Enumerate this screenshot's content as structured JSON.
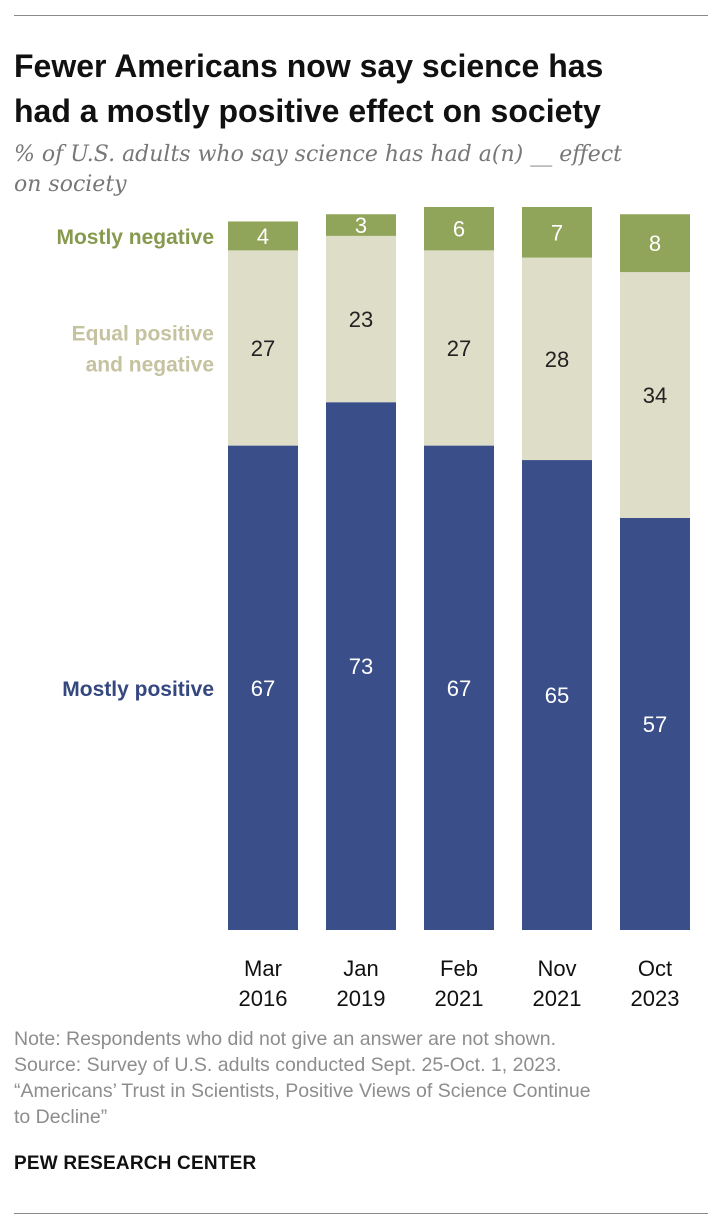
{
  "chart_data": {
    "type": "bar",
    "stacked": true,
    "title": "Fewer Americans now say science has had a mostly positive effect on society",
    "title_lines": [
      "Fewer Americans now say science has",
      "had a mostly positive effect on society"
    ],
    "subtitle": "% of U.S. adults who say science has had a(n) __ effect on society",
    "subtitle_lines": [
      "% of U.S. adults who say science has had a(n) __ effect",
      "on society"
    ],
    "categories": [
      {
        "label": [
          "Mar",
          "2016"
        ]
      },
      {
        "label": [
          "Jan",
          "2019"
        ]
      },
      {
        "label": [
          "Feb",
          "2021"
        ]
      },
      {
        "label": [
          "Nov",
          "2021"
        ]
      },
      {
        "label": [
          "Oct",
          "2023"
        ]
      }
    ],
    "series": [
      {
        "name": "Mostly positive",
        "label_lines": [
          "Mostly positive"
        ],
        "color": "#3a4f8a",
        "value_color": "#ffffff",
        "values": [
          67,
          73,
          67,
          65,
          57
        ]
      },
      {
        "name": "Equal positive and negative",
        "label_lines": [
          "Equal positive",
          "and negative"
        ],
        "color": "#deddc7",
        "value_color": "#222222",
        "values": [
          27,
          23,
          27,
          28,
          34
        ]
      },
      {
        "name": "Mostly negative",
        "label_lines": [
          "Mostly negative"
        ],
        "color": "#91a55a",
        "value_color": "#ffffff",
        "values": [
          4,
          3,
          6,
          7,
          8
        ]
      }
    ],
    "label_colors": [
      "#34477f",
      "#c5c2a0",
      "#86994e"
    ],
    "ylim": [
      0,
      100
    ],
    "grid": false,
    "legend": "left, inline labels"
  },
  "note_lines": [
    "Note: Respondents who did not give an answer are not shown.",
    "Source: Survey of U.S. adults conducted Sept. 25-Oct. 1, 2023.",
    "“Americans’ Trust in Scientists, Positive Views of Science Continue",
    "to Decline”"
  ],
  "brand": "PEW RESEARCH CENTER"
}
